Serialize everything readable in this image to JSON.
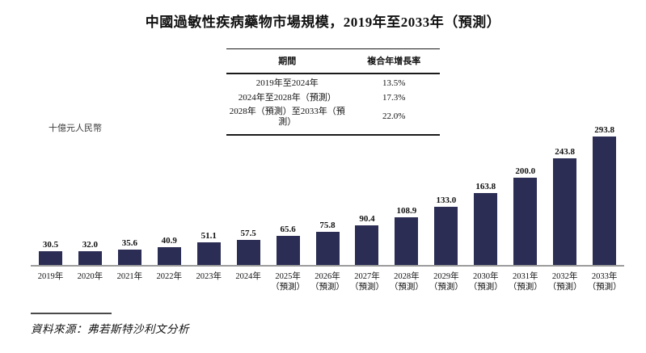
{
  "title": "中國過敏性疾病藥物市場規模，2019年至2033年（預測）",
  "cagr_table": {
    "headers": [
      "期間",
      "複合年增長率"
    ],
    "rows": [
      [
        "2019年至2024年",
        "13.5%"
      ],
      [
        "2024年至2028年（預測）",
        "17.3%"
      ],
      [
        "2028年（預測）至2033年（預測）",
        "22.0%"
      ]
    ]
  },
  "y_axis_unit": "十億元人民幣",
  "chart_data": {
    "type": "bar",
    "title": "中國過敏性疾病藥物市場規模，2019年至2033年（預測）",
    "xlabel": "",
    "ylabel": "十億元人民幣",
    "categories": [
      "2019年",
      "2020年",
      "2021年",
      "2022年",
      "2023年",
      "2024年",
      "2025年（預測）",
      "2026年（預測）",
      "2027年（預測）",
      "2028年（預測）",
      "2029年（預測）",
      "2030年（預測）",
      "2031年（預測）",
      "2032年（預測）",
      "2033年（預測）"
    ],
    "values": [
      30.5,
      32.0,
      35.6,
      40.9,
      51.1,
      57.5,
      65.6,
      75.8,
      90.4,
      108.9,
      133.0,
      163.8,
      200.0,
      243.8,
      293.8
    ],
    "value_labels": [
      "30.5",
      "32.0",
      "35.6",
      "40.9",
      "51.1",
      "57.5",
      "65.6",
      "75.8",
      "90.4",
      "108.9",
      "133.0",
      "163.8",
      "200.0",
      "243.8",
      "293.8"
    ],
    "forecast_note": "（預測）",
    "bar_color": "#2b2d54",
    "axis_line_color": "#9b9b9b",
    "ylim": [
      0,
      300
    ],
    "grid": false,
    "legend": "none"
  },
  "source_note": "資料來源：弗若斯特沙利文分析"
}
